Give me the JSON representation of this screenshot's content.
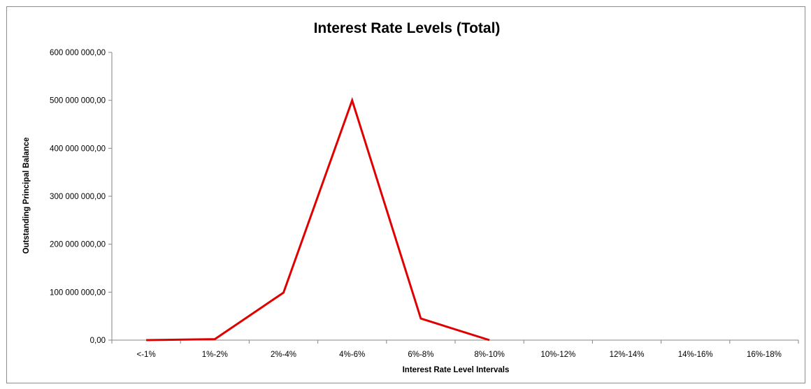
{
  "chart_data": {
    "type": "line",
    "title": "Interest Rate Levels (Total)",
    "xlabel": "Interest Rate Level Intervals",
    "ylabel": "Outstanding Principal Balance",
    "categories": [
      "<-1%",
      "1%-2%",
      "2%-4%",
      "4%-6%",
      "6%-8%",
      "8%-10%",
      "10%-12%",
      "12%-14%",
      "14%-16%",
      "16%-18%"
    ],
    "series": [
      {
        "color": "#e00000",
        "values": [
          0,
          2000000,
          99000000,
          500000000,
          45000000,
          0,
          null,
          null,
          null,
          null
        ]
      }
    ],
    "ylim": [
      0,
      600000000
    ],
    "yticks": [
      0,
      100000000,
      200000000,
      300000000,
      400000000,
      500000000,
      600000000
    ],
    "ytick_labels": [
      "0,00",
      "100 000 000,00",
      "200 000 000,00",
      "300 000 000,00",
      "400 000 000,00",
      "500 000 000,00",
      "600 000 000,00"
    ],
    "grid": false,
    "legend": "none"
  }
}
